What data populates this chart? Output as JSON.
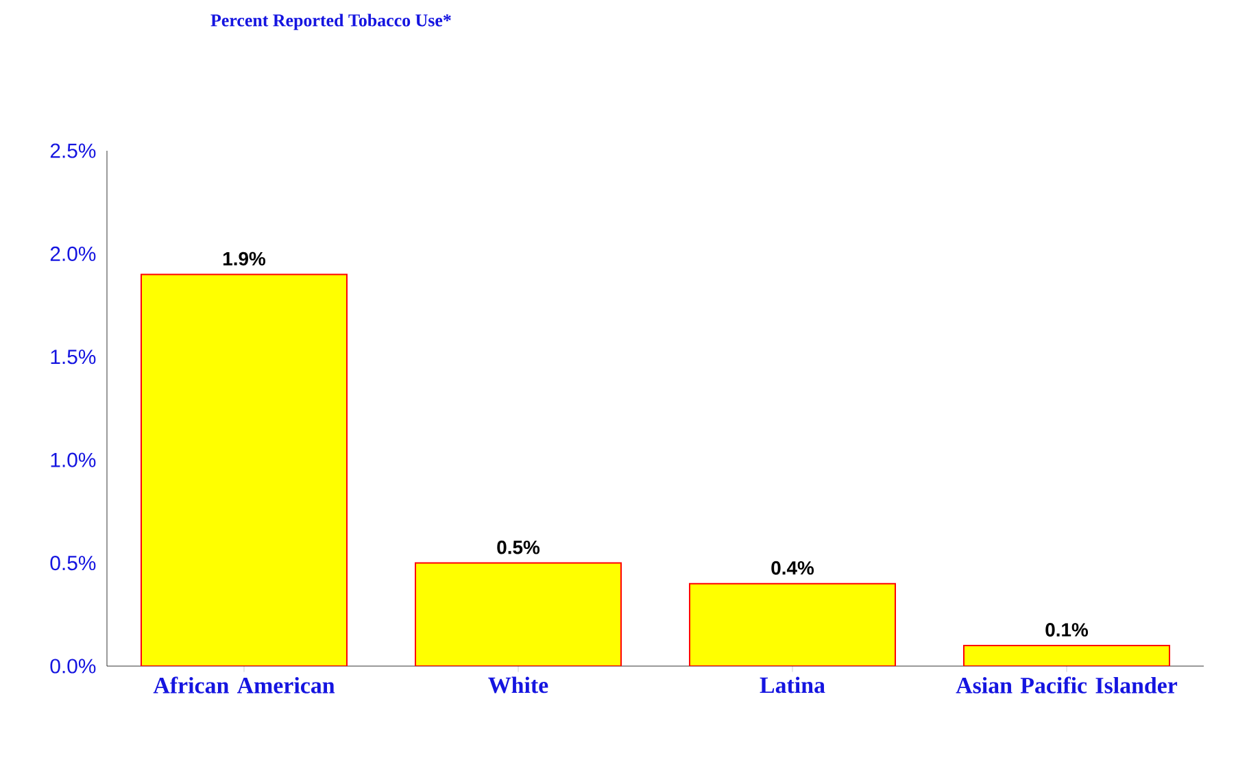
{
  "chart_data": {
    "type": "bar",
    "title": "Percent Reported Tobacco Use*",
    "categories": [
      "African American",
      "White",
      "Latina",
      "Asian Pacific Islander"
    ],
    "values": [
      1.9,
      0.5,
      0.4,
      0.1
    ],
    "value_labels": [
      "1.9%",
      "0.5%",
      "0.4%",
      "0.1%"
    ],
    "color": "#ffff00",
    "ylim": [
      0,
      2.5
    ],
    "yticks": [
      {
        "value": 0,
        "label": "0.0%"
      },
      {
        "value": 0.5,
        "label": "0.5%"
      },
      {
        "value": 1,
        "label": "1.0%"
      },
      {
        "value": 1.5,
        "label": "1.5%"
      },
      {
        "value": 2,
        "label": "2.0%"
      },
      {
        "value": 2.5,
        "label": "2.5%"
      }
    ]
  }
}
